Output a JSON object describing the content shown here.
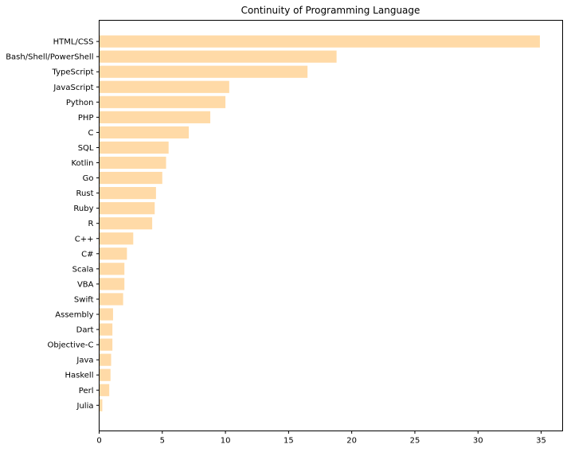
{
  "chart_data": {
    "type": "bar",
    "orientation": "horizontal",
    "title": "Continuity of Programming Language",
    "xlabel": "",
    "ylabel": "",
    "xlim": [
      0,
      36.7
    ],
    "xticks": [
      0,
      5,
      10,
      15,
      20,
      25,
      30,
      35
    ],
    "grid": false,
    "bar_color": "#ffdaa7",
    "categories": [
      "HTML/CSS",
      "Bash/Shell/PowerShell",
      "TypeScript",
      "JavaScript",
      "Python",
      "PHP",
      "C",
      "SQL",
      "Kotlin",
      "Go",
      "Rust",
      "Ruby",
      "R",
      "C++",
      "C#",
      "Scala",
      "VBA",
      "Swift",
      "Assembly",
      "Dart",
      "Objective-C",
      "Java",
      "Haskell",
      "Perl",
      "Julia"
    ],
    "values": [
      34.9,
      18.8,
      16.5,
      10.3,
      10.0,
      8.8,
      7.1,
      5.5,
      5.3,
      5.0,
      4.5,
      4.4,
      4.2,
      2.7,
      2.2,
      2.0,
      2.0,
      1.9,
      1.1,
      1.05,
      1.05,
      0.95,
      0.9,
      0.8,
      0.25
    ]
  }
}
